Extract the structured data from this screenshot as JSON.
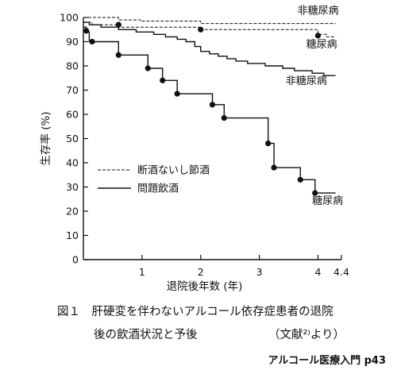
{
  "chart_data": {
    "type": "line",
    "ylabel": "生存率 (%)",
    "xlabel": "退院後年数 (年)",
    "x_ticks": [
      "1",
      "2",
      "3",
      "4",
      "4.4"
    ],
    "x_tick_values": [
      1,
      2,
      3,
      4,
      4.4
    ],
    "y_ticks": [
      "0",
      "10",
      "20",
      "30",
      "40",
      "50",
      "60",
      "70",
      "80",
      "90",
      "100"
    ],
    "xlim": [
      0,
      4.4
    ],
    "ylim": [
      0,
      100
    ],
    "grid": false,
    "legend": {
      "placement": "center-left",
      "entries": [
        {
          "label": "断酒ないし節酒",
          "style": "dashed"
        },
        {
          "label": "問題飲酒",
          "style": "solid"
        }
      ]
    },
    "series": [
      {
        "style": "dashed",
        "label": "非糖尿病",
        "points": [
          [
            0,
            100
          ],
          [
            0.6,
            100
          ],
          [
            0.6,
            99
          ],
          [
            1.0,
            99
          ],
          [
            1.0,
            98.5
          ],
          [
            2.0,
            98.5
          ],
          [
            2.0,
            97.5
          ],
          [
            4.3,
            97.5
          ]
        ],
        "markers": []
      },
      {
        "style": "dashed",
        "label": "糖尿病",
        "points": [
          [
            0,
            98
          ],
          [
            0.15,
            98
          ],
          [
            0.15,
            97
          ],
          [
            0.6,
            97
          ],
          [
            0.6,
            96
          ],
          [
            2.0,
            96
          ],
          [
            2.0,
            95
          ],
          [
            4.0,
            95
          ],
          [
            4.0,
            93
          ],
          [
            4.15,
            93
          ],
          [
            4.15,
            92
          ],
          [
            4.3,
            92
          ]
        ],
        "markers": [
          [
            0.6,
            97
          ],
          [
            2.0,
            95
          ],
          [
            4.0,
            92.5
          ]
        ]
      },
      {
        "style": "solid",
        "label": "非糖尿病",
        "points": [
          [
            0,
            98
          ],
          [
            0.1,
            98
          ],
          [
            0.1,
            97
          ],
          [
            0.3,
            97
          ],
          [
            0.3,
            96
          ],
          [
            0.6,
            96
          ],
          [
            0.6,
            95
          ],
          [
            0.9,
            95
          ],
          [
            0.9,
            94
          ],
          [
            1.2,
            94
          ],
          [
            1.2,
            93
          ],
          [
            1.4,
            93
          ],
          [
            1.4,
            92
          ],
          [
            1.6,
            92
          ],
          [
            1.6,
            91
          ],
          [
            1.75,
            91
          ],
          [
            1.75,
            90
          ],
          [
            1.9,
            90
          ],
          [
            1.9,
            88
          ],
          [
            2.0,
            88
          ],
          [
            2.0,
            86
          ],
          [
            2.15,
            86
          ],
          [
            2.15,
            85
          ],
          [
            2.3,
            85
          ],
          [
            2.3,
            84
          ],
          [
            2.45,
            84
          ],
          [
            2.45,
            83
          ],
          [
            2.6,
            83
          ],
          [
            2.6,
            82
          ],
          [
            2.8,
            82
          ],
          [
            2.8,
            81
          ],
          [
            3.1,
            81
          ],
          [
            3.1,
            80
          ],
          [
            3.4,
            80
          ],
          [
            3.4,
            79
          ],
          [
            3.6,
            79
          ],
          [
            3.6,
            78
          ],
          [
            3.9,
            78
          ],
          [
            3.9,
            77
          ],
          [
            4.1,
            77
          ],
          [
            4.1,
            76
          ],
          [
            4.3,
            76
          ]
        ],
        "markers": []
      },
      {
        "style": "solid",
        "label": "糖尿病",
        "points": [
          [
            0,
            96
          ],
          [
            0.05,
            96
          ],
          [
            0.05,
            94
          ],
          [
            0.1,
            94
          ],
          [
            0.1,
            90
          ],
          [
            0.6,
            90
          ],
          [
            0.6,
            84.5
          ],
          [
            1.1,
            84.5
          ],
          [
            1.1,
            79
          ],
          [
            1.35,
            79
          ],
          [
            1.35,
            74
          ],
          [
            1.6,
            74
          ],
          [
            1.6,
            68.5
          ],
          [
            2.2,
            68.5
          ],
          [
            2.2,
            64
          ],
          [
            2.4,
            64
          ],
          [
            2.4,
            58.5
          ],
          [
            3.15,
            58.5
          ],
          [
            3.15,
            48
          ],
          [
            3.25,
            48
          ],
          [
            3.25,
            38
          ],
          [
            3.7,
            38
          ],
          [
            3.7,
            33
          ],
          [
            3.95,
            33
          ],
          [
            3.95,
            27.5
          ],
          [
            4.3,
            27.5
          ]
        ],
        "markers": [
          [
            0.05,
            94.5
          ],
          [
            0.15,
            90
          ],
          [
            0.6,
            84.5
          ],
          [
            1.1,
            79
          ],
          [
            1.35,
            74
          ],
          [
            1.6,
            68.5
          ],
          [
            2.2,
            64
          ],
          [
            2.4,
            58.5
          ],
          [
            3.15,
            48
          ],
          [
            3.25,
            38
          ],
          [
            3.7,
            33
          ],
          [
            3.95,
            27.5
          ]
        ]
      }
    ],
    "annotations": [
      {
        "text": "非糖尿病",
        "anchor": [
          3.65,
          101.5
        ]
      },
      {
        "text": "糖尿病",
        "anchor": [
          3.8,
          87.5
        ]
      },
      {
        "text": "非糖尿病",
        "anchor": [
          3.45,
          72.5
        ]
      },
      {
        "text": "糖尿病",
        "anchor": [
          3.9,
          23.0
        ]
      }
    ]
  },
  "caption": {
    "line1": "図１　肝硬変を伴わないアルコール依存症患者の退院",
    "line2": "後の飲酒状況と予後",
    "ref": "（文献²⁾より）"
  },
  "source": "アルコール医療入門 p43"
}
